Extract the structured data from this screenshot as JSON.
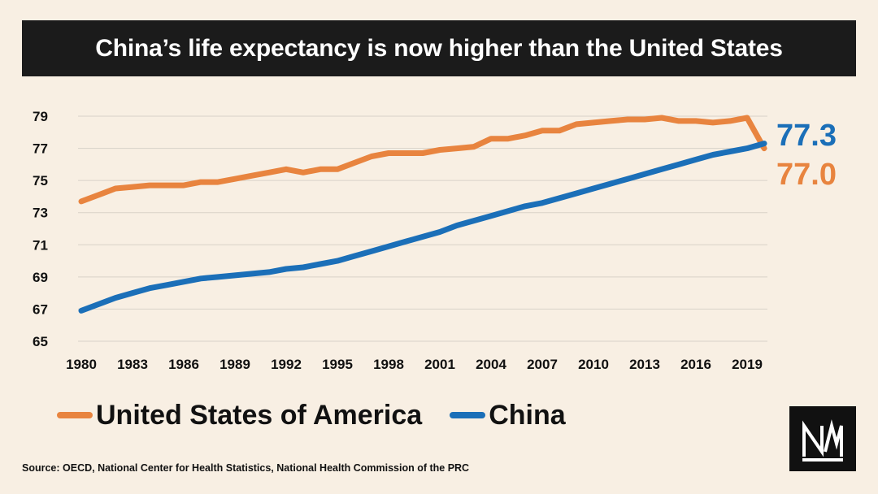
{
  "title": "China’s life expectancy is now higher than the United States",
  "source": "Source: OECD, National Center for Health Statistics, National Health Commission of the PRC",
  "logo_text": "N",
  "chart_data": {
    "type": "line",
    "x": [
      1980,
      1981,
      1982,
      1983,
      1984,
      1985,
      1986,
      1987,
      1988,
      1989,
      1990,
      1991,
      1992,
      1993,
      1994,
      1995,
      1996,
      1997,
      1998,
      1999,
      2000,
      2001,
      2002,
      2003,
      2004,
      2005,
      2006,
      2007,
      2008,
      2009,
      2010,
      2011,
      2012,
      2013,
      2014,
      2015,
      2016,
      2017,
      2018,
      2019,
      2020
    ],
    "x_ticks": [
      1980,
      1983,
      1986,
      1989,
      1992,
      1995,
      1998,
      2001,
      2004,
      2007,
      2010,
      2013,
      2016,
      2019
    ],
    "ylim": [
      65,
      79
    ],
    "y_ticks": [
      65,
      67,
      69,
      71,
      73,
      75,
      77,
      79
    ],
    "grid": true,
    "series": [
      {
        "name": "United States of America",
        "color": "#e8843f",
        "values": [
          73.7,
          74.1,
          74.5,
          74.6,
          74.7,
          74.7,
          74.7,
          74.9,
          74.9,
          75.1,
          75.3,
          75.5,
          75.7,
          75.5,
          75.7,
          75.7,
          76.1,
          76.5,
          76.7,
          76.7,
          76.7,
          76.9,
          77.0,
          77.1,
          77.6,
          77.6,
          77.8,
          78.1,
          78.1,
          78.5,
          78.6,
          78.7,
          78.8,
          78.8,
          78.9,
          78.7,
          78.7,
          78.6,
          78.7,
          78.9,
          77.0
        ],
        "end_label": "77.0"
      },
      {
        "name": "China",
        "color": "#1b6fb8",
        "values": [
          66.9,
          67.3,
          67.7,
          68.0,
          68.3,
          68.5,
          68.7,
          68.9,
          69.0,
          69.1,
          69.2,
          69.3,
          69.5,
          69.6,
          69.8,
          70.0,
          70.3,
          70.6,
          70.9,
          71.2,
          71.5,
          71.8,
          72.2,
          72.5,
          72.8,
          73.1,
          73.4,
          73.6,
          73.9,
          74.2,
          74.5,
          74.8,
          75.1,
          75.4,
          75.7,
          76.0,
          76.3,
          76.6,
          76.8,
          77.0,
          77.3
        ],
        "end_label": "77.3"
      }
    ]
  }
}
